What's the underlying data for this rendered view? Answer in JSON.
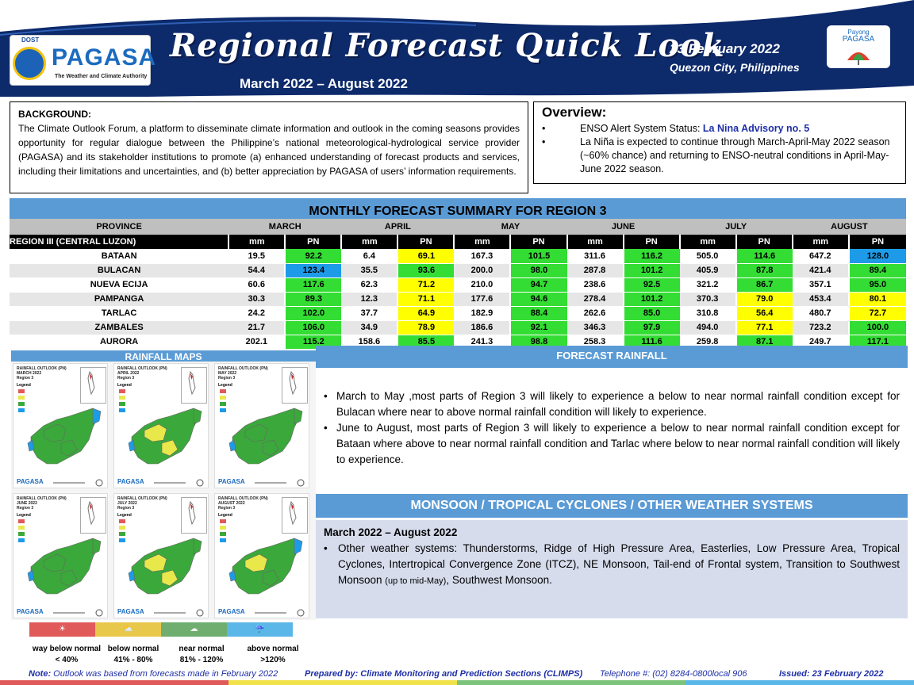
{
  "header": {
    "title": "Regional Forecast Quick Look",
    "subtitle": "March 2022 – August 2022",
    "date": "23 February 2022",
    "place": "Quezon City, Philippines",
    "logo_left": {
      "dost": "DOST",
      "name": "PAGASA",
      "tagline": "The Weather and Climate Authority"
    },
    "logo_right": {
      "line1": "Payong",
      "line2": "PAGASA"
    }
  },
  "background": {
    "heading": "BACKGROUND:",
    "text": "The Climate Outlook Forum, a platform to disseminate climate information and outlook in the coming seasons provides opportunity for regular dialogue between the Philippine’s national meteorological-hydrological service provider (PAGASA) and its stakeholder institutions to promote (a) enhanced understanding of forecast products and services, including their limitations and uncertainties, and (b) better appreciation by PAGASA of users’ information requirements."
  },
  "overview": {
    "heading": "Overview:",
    "item1_prefix": "ENSO Alert System Status: ",
    "item1_link": "La Nina Advisory no. 5",
    "item2": "La Niña is expected to continue through March-April-May 2022 season (~60% chance) and returning to ENSO-neutral conditions in April-May-June 2022 season."
  },
  "table": {
    "title": "MONTHLY FORECAST SUMMARY FOR REGION 3",
    "province_label": "PROVINCE",
    "region_label": "REGION III (CENTRAL LUZON)",
    "mm_label": "mm",
    "pn_label": "PN",
    "months": [
      "MARCH",
      "APRIL",
      "MAY",
      "JUNE",
      "JULY",
      "AUGUST"
    ],
    "rows": [
      {
        "province": "BATAAN",
        "mm": [
          "19.5",
          "6.4",
          "167.3",
          "311.6",
          "505.0",
          "647.2"
        ],
        "pn": [
          "92.2",
          "69.1",
          "101.5",
          "116.2",
          "114.6",
          "128.0"
        ],
        "cls": [
          "near",
          "below",
          "near",
          "near",
          "near",
          "above"
        ]
      },
      {
        "province": "BULACAN",
        "mm": [
          "54.4",
          "35.5",
          "200.0",
          "287.8",
          "405.9",
          "421.4"
        ],
        "pn": [
          "123.4",
          "93.6",
          "98.0",
          "101.2",
          "87.8",
          "89.4"
        ],
        "cls": [
          "above",
          "near",
          "near",
          "near",
          "near",
          "near"
        ]
      },
      {
        "province": "NUEVA ECIJA",
        "mm": [
          "60.6",
          "62.3",
          "210.0",
          "238.6",
          "321.2",
          "357.1"
        ],
        "pn": [
          "117.6",
          "71.2",
          "94.7",
          "92.5",
          "86.7",
          "95.0"
        ],
        "cls": [
          "near",
          "below",
          "near",
          "near",
          "near",
          "near"
        ]
      },
      {
        "province": "PAMPANGA",
        "mm": [
          "30.3",
          "12.3",
          "177.6",
          "278.4",
          "370.3",
          "453.4"
        ],
        "pn": [
          "89.3",
          "71.1",
          "94.6",
          "101.2",
          "79.0",
          "80.1"
        ],
        "cls": [
          "near",
          "below",
          "near",
          "near",
          "below",
          "below"
        ]
      },
      {
        "province": "TARLAC",
        "mm": [
          "24.2",
          "37.7",
          "182.9",
          "262.6",
          "310.8",
          "480.7"
        ],
        "pn": [
          "102.0",
          "64.9",
          "88.4",
          "85.0",
          "56.4",
          "72.7"
        ],
        "cls": [
          "near",
          "below",
          "near",
          "near",
          "below",
          "below"
        ]
      },
      {
        "province": "ZAMBALES",
        "mm": [
          "21.7",
          "34.9",
          "186.6",
          "346.3",
          "494.0",
          "723.2"
        ],
        "pn": [
          "106.0",
          "78.9",
          "92.1",
          "97.9",
          "77.1",
          "100.0"
        ],
        "cls": [
          "near",
          "below",
          "near",
          "near",
          "below",
          "near"
        ]
      },
      {
        "province": "AURORA",
        "mm": [
          "202.1",
          "158.6",
          "241.3",
          "258.3",
          "259.8",
          "249.7"
        ],
        "pn": [
          "115.2",
          "85.5",
          "98.8",
          "111.6",
          "87.1",
          "117.1"
        ],
        "cls": [
          "near",
          "near",
          "near",
          "near",
          "near",
          "near"
        ]
      }
    ]
  },
  "colors": {
    "way_below": "#e05a5a",
    "below": "#ffff00",
    "near": "#33dd33",
    "above": "#1e9be8",
    "accent": "#5b9bd5",
    "navy": "#0d2a6b"
  },
  "maps": {
    "heading": "RAINFALL MAPS",
    "titles": [
      {
        "l1": "RAINFALL OUTLOOK (PN)",
        "l2": "MARCH 2022",
        "l3": "Region 3"
      },
      {
        "l1": "RAINFALL OUTLOOK (PN)",
        "l2": "APRIL 2022",
        "l3": "Region 3"
      },
      {
        "l1": "RAINFALL OUTLOOK (PN)",
        "l2": "MAY 2022",
        "l3": "Region 3"
      },
      {
        "l1": "RAINFALL OUTLOOK (PN)",
        "l2": "JUNE 2022",
        "l3": "Region 3"
      },
      {
        "l1": "RAINFALL OUTLOOK (PN)",
        "l2": "JULY 2022",
        "l3": "Region 3"
      },
      {
        "l1": "RAINFALL OUTLOOK (PN)",
        "l2": "AUGUST 2022",
        "l3": "Region 3"
      }
    ],
    "legend_word": "Legend",
    "logo_word": "PAGASA"
  },
  "legend": [
    {
      "name": "way below normal",
      "range": "< 40%",
      "icon": "sun-icon"
    },
    {
      "name": "below normal",
      "range": "41% - 80%",
      "icon": "partly-cloudy-icon"
    },
    {
      "name": "near normal",
      "range": "81% - 120%",
      "icon": "cloud-rain-icon"
    },
    {
      "name": "above normal",
      "range": ">120%",
      "icon": "heavy-rain-icon"
    }
  ],
  "forecast": {
    "heading": "FORECAST RAINFALL",
    "bullet1": "March to May ,most parts of Region 3 will likely to experience a below to near normal rainfall condition except for Bulacan where near to above normal rainfall condition will likely to experience.",
    "bullet2": "June to August, most parts of Region 3 will likely to experience a below to near normal rainfall condition except for Bataan where above to near normal rainfall condition and Tarlac where below to near normal rainfall condition will likely to experience."
  },
  "monsoon": {
    "heading": "MONSOON / TROPICAL CYCLONES / OTHER WEATHER SYSTEMS",
    "period": "March 2022 – August 2022",
    "text_a": "Other weather systems: Thunderstorms,  Ridge of High Pressure Area,  Easterlies, Low Pressure Area, Tropical Cyclones, Intertropical Convergence Zone (ITCZ), NE Monsoon, Tail-end of Frontal system, Transition to Southwest Monsoon ",
    "text_small": "(up to mid-May)",
    "text_b": ", Southwest Monsoon."
  },
  "footer": {
    "note_label": "Note:",
    "note": " Outlook was based from forecasts made in February 2022",
    "prepared": "Prepared by: Climate Monitoring and Prediction Sections (CLIMPS)",
    "telephone": "Telephone #: (02) 8284-0800local 906",
    "issued": "Issued: 23 February 2022"
  }
}
